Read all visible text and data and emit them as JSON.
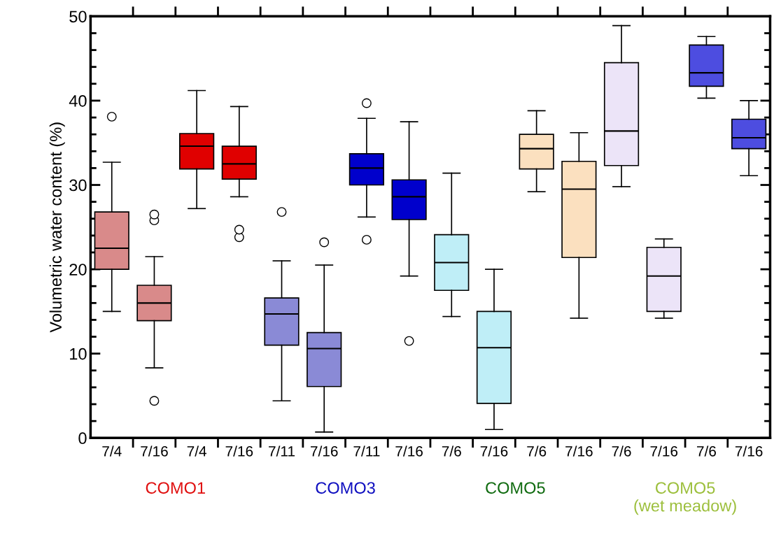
{
  "chart_data": {
    "type": "box",
    "ylabel": "Volumetric water content (%)",
    "categories": [
      "7/4",
      "7/16",
      "7/4",
      "7/16",
      "7/11",
      "7/16",
      "7/11",
      "7/16",
      "7/6",
      "7/16",
      "7/6",
      "7/16",
      "7/6",
      "7/16",
      "7/6",
      "7/16"
    ],
    "boxes": [
      {
        "low": 15.0,
        "q1": 20.0,
        "median": 22.5,
        "q3": 26.8,
        "high": 32.7,
        "outliers": [
          38.1
        ]
      },
      {
        "low": 8.3,
        "q1": 13.9,
        "median": 16.0,
        "q3": 18.1,
        "high": 21.5,
        "outliers": [
          4.4,
          25.8,
          26.5
        ]
      },
      {
        "low": 27.2,
        "q1": 31.9,
        "median": 34.6,
        "q3": 36.1,
        "high": 41.2
      },
      {
        "low": 28.6,
        "q1": 30.7,
        "median": 32.5,
        "q3": 34.6,
        "high": 39.3,
        "outliers": [
          23.8,
          24.7
        ]
      },
      {
        "low": 4.4,
        "q1": 11.0,
        "median": 14.7,
        "q3": 16.6,
        "high": 21.0,
        "outliers": [
          26.8
        ]
      },
      {
        "low": 0.7,
        "q1": 6.1,
        "median": 10.6,
        "q3": 12.5,
        "high": 20.5,
        "outliers": [
          23.2
        ]
      },
      {
        "low": 26.2,
        "q1": 30.0,
        "median": 32.0,
        "q3": 33.7,
        "high": 37.9,
        "outliers": [
          23.5,
          39.7
        ]
      },
      {
        "low": 19.2,
        "q1": 25.9,
        "median": 28.6,
        "q3": 30.6,
        "high": 37.5,
        "outliers": [
          11.5
        ]
      },
      {
        "low": 14.4,
        "q1": 17.5,
        "median": 20.8,
        "q3": 24.1,
        "high": 31.4
      },
      {
        "low": 1.0,
        "q1": 4.1,
        "median": 10.7,
        "q3": 15.0,
        "high": 20.0
      },
      {
        "low": 29.2,
        "q1": 31.9,
        "median": 34.3,
        "q3": 36.0,
        "high": 38.8
      },
      {
        "low": 14.2,
        "q1": 21.4,
        "median": 29.5,
        "q3": 32.8,
        "high": 36.2
      },
      {
        "low": 29.8,
        "q1": 32.3,
        "median": 36.4,
        "q3": 44.5,
        "high": 48.9
      },
      {
        "low": 14.2,
        "q1": 15.0,
        "median": 19.2,
        "q3": 22.6,
        "high": 23.6
      },
      {
        "low": 40.3,
        "q1": 41.7,
        "median": 43.3,
        "q3": 46.6,
        "high": 47.6
      },
      {
        "low": 31.1,
        "q1": 34.3,
        "median": 35.6,
        "q3": 37.8,
        "high": 40.0
      }
    ],
    "colors": [
      "#d98a8a",
      "#d98a8a",
      "#e00000",
      "#e00000",
      "#8a8ad6",
      "#8a8ad6",
      "#0000cc",
      "#0000cc",
      "#bfeef7",
      "#bfeef7",
      "#fbe0bf",
      "#fbe0bf",
      "#ece4f8",
      "#ece4f8",
      "#4d4de0",
      "#4d4de0"
    ],
    "ylim": [
      0,
      50
    ],
    "yticks": [
      0,
      {
        "value": 2,
        "label": null
      },
      {
        "value": 4,
        "label": null
      },
      {
        "value": 6,
        "label": null
      },
      {
        "value": 8,
        "label": null
      },
      10,
      {
        "value": 12,
        "label": null
      },
      {
        "value": 14,
        "label": null
      },
      {
        "value": 16,
        "label": null
      },
      {
        "value": 18,
        "label": null
      },
      20,
      {
        "value": 22,
        "label": null
      },
      {
        "value": 24,
        "label": null
      },
      {
        "value": 26,
        "label": null
      },
      {
        "value": 28,
        "label": null
      },
      30,
      {
        "value": 32,
        "label": null
      },
      {
        "value": 34,
        "label": null
      },
      {
        "value": 36,
        "label": null
      },
      {
        "value": 38,
        "label": null
      },
      40,
      {
        "value": 42,
        "label": null
      },
      {
        "value": 44,
        "label": null
      },
      {
        "value": 46,
        "label": null
      },
      {
        "value": 48,
        "label": null
      },
      50
    ],
    "grid": false,
    "legend": false,
    "annotations": [
      "COMO1",
      "COMO3",
      "COMO5",
      "COMO5\n(wet meadow)"
    ]
  }
}
